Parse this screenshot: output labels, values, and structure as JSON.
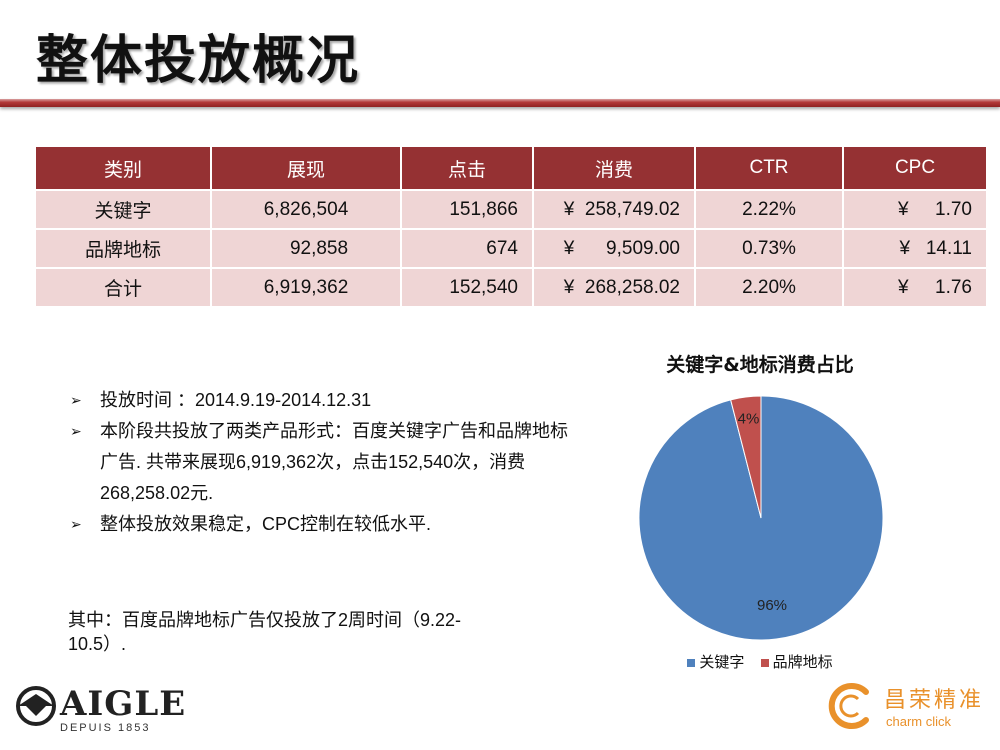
{
  "title": "整体投放概况",
  "table": {
    "headers": [
      "类别",
      "展现",
      "点击",
      "消费",
      "CTR",
      "CPC"
    ],
    "rows": [
      {
        "category": "关键字",
        "impressions": "6,826,504",
        "clicks": "151,866",
        "cost_symbol": "¥",
        "cost": "258,749.02",
        "ctr": "2.22%",
        "cpc_symbol": "¥",
        "cpc": "1.70"
      },
      {
        "category": "品牌地标",
        "impressions": "92,858",
        "clicks": "674",
        "cost_symbol": "¥",
        "cost": "9,509.00",
        "ctr": "0.73%",
        "cpc_symbol": "¥",
        "cpc": "14.11"
      },
      {
        "category": "合计",
        "impressions": "6,919,362",
        "clicks": "152,540",
        "cost_symbol": "¥",
        "cost": "268,258.02",
        "ctr": "2.20%",
        "cpc_symbol": "¥",
        "cpc": "1.76"
      }
    ]
  },
  "bullets": [
    "投放时间 ：2014.9.19-2014.12.31",
    "本阶段共投放了两类产品形式：百度关键字广告和品牌地标广告. 共带来展现6,919,362次，点击152,540次，消费268,258.02元.",
    "整体投放效果稳定，CPC控制在较低水平."
  ],
  "note": "其中：百度品牌地标广告仅投放了2周时间（9.22-10.5）.",
  "chart_data": {
    "type": "pie",
    "title": "关键字&地标消费占比",
    "categories": [
      "关键字",
      "品牌地标"
    ],
    "values": [
      96,
      4
    ],
    "labels": [
      "96%",
      "4%"
    ],
    "colors": [
      "#4f81bd",
      "#c0504d"
    ],
    "legend": "bottom"
  },
  "logos": {
    "aigle": {
      "word": "AIGLE",
      "sub": "DEPUIS 1853"
    },
    "changrong": {
      "name": "昌荣精准",
      "en": "charm click",
      "color": "#e9912b"
    }
  }
}
